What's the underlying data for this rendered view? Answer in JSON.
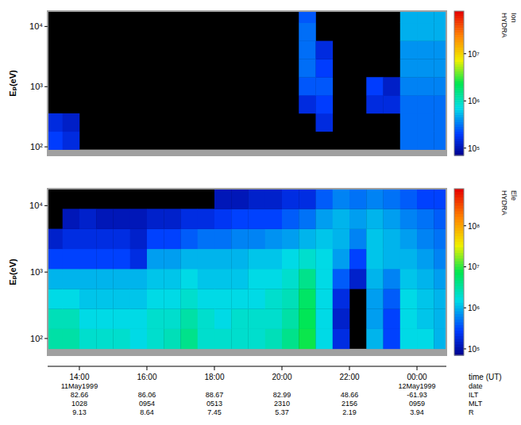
{
  "chart_data": [
    {
      "type": "heatmap",
      "ylabel": "Eₚ(eV)",
      "log": "y",
      "tick_labels": "y",
      "xlim": [
        13.06,
        24.87
      ],
      "ylim": [
        72,
        18000
      ],
      "yticks": [
        {
          "value": 100,
          "label": "10²"
        },
        {
          "value": 1000,
          "label": "10³"
        },
        {
          "value": 10000,
          "label": "10⁴"
        }
      ],
      "x_edges": [
        13.0,
        13.5,
        14.0,
        14.5,
        15.0,
        15.5,
        16.0,
        16.5,
        17.0,
        17.5,
        18.0,
        18.5,
        19.0,
        19.5,
        20.0,
        20.5,
        21.0,
        21.5,
        22.0,
        22.5,
        23.0,
        23.5,
        24.0,
        24.5,
        25.0
      ],
      "y_edges": [
        90,
        180,
        360,
        720,
        1440,
        2880,
        5760,
        11520,
        18000
      ],
      "cells": [
        [
          200000.0,
          150000.0,
          null,
          null,
          null,
          null,
          null,
          null,
          null,
          null,
          null,
          null,
          null,
          null,
          null,
          null,
          null,
          null,
          null,
          null,
          null,
          300000.0,
          300000.0,
          300000.0
        ],
        [
          150000.0,
          120000.0,
          null,
          null,
          null,
          null,
          null,
          null,
          null,
          null,
          null,
          null,
          null,
          null,
          null,
          null,
          150000.0,
          null,
          null,
          null,
          null,
          300000.0,
          300000.0,
          300000.0
        ],
        [
          null,
          null,
          null,
          null,
          null,
          null,
          null,
          null,
          null,
          null,
          null,
          null,
          null,
          null,
          null,
          150000.0,
          200000.0,
          null,
          null,
          150000.0,
          150000.0,
          300000.0,
          300000.0,
          300000.0
        ],
        [
          null,
          null,
          null,
          null,
          null,
          null,
          null,
          null,
          null,
          null,
          null,
          null,
          null,
          null,
          null,
          250000.0,
          250000.0,
          null,
          null,
          200000.0,
          120000.0,
          350000.0,
          350000.0,
          350000.0
        ],
        [
          null,
          null,
          null,
          null,
          null,
          null,
          null,
          null,
          null,
          null,
          null,
          null,
          null,
          null,
          null,
          300000.0,
          200000.0,
          null,
          null,
          null,
          null,
          400000.0,
          400000.0,
          400000.0
        ],
        [
          null,
          null,
          null,
          null,
          null,
          null,
          null,
          null,
          null,
          null,
          null,
          null,
          null,
          null,
          null,
          300000.0,
          150000.0,
          null,
          null,
          null,
          null,
          400000.0,
          400000.0,
          400000.0
        ],
        [
          null,
          null,
          null,
          null,
          null,
          null,
          null,
          null,
          null,
          null,
          null,
          null,
          null,
          null,
          null,
          300000.0,
          null,
          null,
          null,
          null,
          null,
          500000.0,
          500000.0,
          500000.0
        ],
        [
          null,
          null,
          null,
          null,
          null,
          null,
          null,
          null,
          null,
          null,
          null,
          null,
          null,
          null,
          null,
          250000.0,
          null,
          null,
          null,
          null,
          null,
          500000.0,
          500000.0,
          500000.0
        ]
      ],
      "colorbar": {
        "label": "HYDRA Ion",
        "log": true,
        "range": [
          70000,
          80000000
        ],
        "ticks": [
          {
            "value": 100000,
            "label": "10⁵"
          },
          {
            "value": 1000000,
            "label": "10⁶"
          },
          {
            "value": 10000000,
            "label": "10⁷"
          }
        ]
      }
    },
    {
      "type": "heatmap",
      "ylabel": "Eₚ(eV)",
      "log": "y",
      "xlabel": "time (UT)",
      "xlim": [
        13.06,
        24.87
      ],
      "ylim": [
        56,
        18000
      ],
      "xticks": [
        {
          "value": 14,
          "label": "14:00"
        },
        {
          "value": 16,
          "label": "16:00"
        },
        {
          "value": 18,
          "label": "18:00"
        },
        {
          "value": 20,
          "label": "20:00"
        },
        {
          "value": 22,
          "label": "22:00"
        },
        {
          "value": 24,
          "label": "00:00"
        }
      ],
      "yticks": [
        {
          "value": 100,
          "label": "10²"
        },
        {
          "value": 1000,
          "label": "10³"
        },
        {
          "value": 10000,
          "label": "10⁴"
        }
      ],
      "x_edges": [
        13.0,
        13.5,
        14.0,
        14.5,
        15.0,
        15.5,
        16.0,
        16.5,
        17.0,
        17.5,
        18.0,
        18.5,
        19.0,
        19.5,
        20.0,
        20.5,
        21.0,
        21.5,
        22.0,
        22.5,
        23.0,
        23.5,
        24.0,
        24.5,
        25.0
      ],
      "y_edges": [
        70,
        140,
        280,
        560,
        1120,
        2240,
        4480,
        8960,
        18000
      ],
      "cells": [
        [
          3000000.0,
          3000000.0,
          2000000.0,
          2000000.0,
          2000000.0,
          1500000.0,
          2000000.0,
          2500000.0,
          4000000.0,
          2000000.0,
          2000000.0,
          2000000.0,
          2000000.0,
          2500000.0,
          4000000.0,
          8000000.0,
          1500000.0,
          200000.0,
          null,
          1000000.0,
          300000.0,
          1500000.0,
          1500000.0,
          1000000.0
        ],
        [
          2500000.0,
          2500000.0,
          1500000.0,
          1500000.0,
          1500000.0,
          1500000.0,
          2000000.0,
          2000000.0,
          3000000.0,
          2000000.0,
          1500000.0,
          2000000.0,
          2000000.0,
          2000000.0,
          3000000.0,
          7000000.0,
          1500000.0,
          150000.0,
          null,
          800000.0,
          300000.0,
          1500000.0,
          1200000.0,
          1000000.0
        ],
        [
          1500000.0,
          1500000.0,
          1200000.0,
          1200000.0,
          1200000.0,
          1200000.0,
          1500000.0,
          1500000.0,
          2000000.0,
          1500000.0,
          1500000.0,
          1500000.0,
          1500000.0,
          2000000.0,
          2500000.0,
          6000000.0,
          1500000.0,
          200000.0,
          null,
          800000.0,
          400000.0,
          1500000.0,
          1200000.0,
          1000000.0
        ],
        [
          1000000.0,
          1000000.0,
          1000000.0,
          1000000.0,
          1000000.0,
          1000000.0,
          1200000.0,
          1200000.0,
          1500000.0,
          1200000.0,
          1200000.0,
          1200000.0,
          1500000.0,
          1500000.0,
          2000000.0,
          4000000.0,
          1500000.0,
          400000.0,
          150000.0,
          1000000.0,
          600000.0,
          1200000.0,
          1000000.0,
          800000.0
        ],
        [
          300000.0,
          300000.0,
          300000.0,
          300000.0,
          300000.0,
          200000.0,
          800000.0,
          800000.0,
          1000000.0,
          1000000.0,
          1000000.0,
          1000000.0,
          1200000.0,
          1200000.0,
          1500000.0,
          2000000.0,
          1500000.0,
          800000.0,
          300000.0,
          1200000.0,
          1000000.0,
          1000000.0,
          800000.0,
          600000.0
        ],
        [
          150000.0,
          200000.0,
          200000.0,
          200000.0,
          200000.0,
          150000.0,
          300000.0,
          300000.0,
          400000.0,
          500000.0,
          500000.0,
          600000.0,
          600000.0,
          700000.0,
          800000.0,
          1000000.0,
          1200000.0,
          1000000.0,
          600000.0,
          1200000.0,
          1000000.0,
          800000.0,
          600000.0,
          500000.0
        ],
        [
          null,
          120000.0,
          150000.0,
          120000.0,
          120000.0,
          120000.0,
          150000.0,
          150000.0,
          200000.0,
          200000.0,
          250000.0,
          300000.0,
          300000.0,
          300000.0,
          400000.0,
          500000.0,
          800000.0,
          1000000.0,
          800000.0,
          1000000.0,
          800000.0,
          600000.0,
          500000.0,
          400000.0
        ],
        [
          null,
          null,
          null,
          null,
          null,
          null,
          null,
          null,
          null,
          null,
          120000.0,
          120000.0,
          150000.0,
          150000.0,
          200000.0,
          200000.0,
          400000.0,
          600000.0,
          500000.0,
          600000.0,
          500000.0,
          400000.0,
          300000.0,
          300000.0
        ]
      ],
      "colorbar": {
        "label": "HYDRA Ele",
        "log": true,
        "range": [
          70000,
          800000000
        ],
        "ticks": [
          {
            "value": 100000,
            "label": "10⁵"
          },
          {
            "value": 1000000,
            "label": "10⁶"
          },
          {
            "value": 10000000,
            "label": "10⁷"
          },
          {
            "value": 100000000,
            "label": "10⁸"
          }
        ]
      },
      "ephemeris": [
        {
          "label": "date",
          "values": [
            "11May1999",
            null,
            null,
            null,
            null,
            "12May1999"
          ]
        },
        {
          "label": "ILT",
          "values": [
            "82.66",
            "86.06",
            "88.67",
            "82.99",
            "48.66",
            "-61.93"
          ]
        },
        {
          "label": "MLT",
          "values": [
            "1028",
            "0954",
            "0513",
            "2310",
            "2156",
            "0959"
          ]
        },
        {
          "label": "R",
          "values": [
            "9.13",
            "8.64",
            "7.45",
            "5.37",
            "2.19",
            "3.94"
          ]
        }
      ]
    }
  ]
}
